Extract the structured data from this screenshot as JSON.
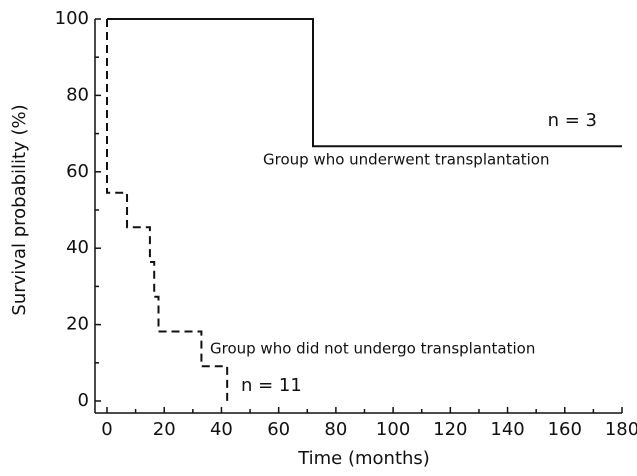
{
  "chart_data": {
    "type": "step",
    "xlabel": "Time (months)",
    "ylabel": "Survival probability (%)",
    "xlim": [
      0,
      180
    ],
    "ylim": [
      0,
      100
    ],
    "xticks": [
      0,
      20,
      40,
      60,
      80,
      100,
      120,
      140,
      160,
      180
    ],
    "yticks": [
      0,
      20,
      40,
      60,
      80,
      100
    ],
    "x_minor_ticks": [
      10,
      30,
      50,
      70,
      90,
      110,
      130,
      150,
      170
    ],
    "y_minor_ticks": [
      10,
      30,
      50,
      70,
      90
    ],
    "series": [
      {
        "name": "Group who underwent transplantation",
        "label": "n = 3",
        "color": "#111111",
        "dashed": false,
        "x": [
          0,
          72,
          180
        ],
        "values": [
          100,
          66.7,
          66.7
        ]
      },
      {
        "name": "Group who did not undergo transplantation",
        "label": "n = 11",
        "color": "#111111",
        "dashed": true,
        "x": [
          0,
          0,
          7,
          15,
          16.5,
          18,
          33,
          42
        ],
        "values": [
          100,
          54.5,
          45.5,
          36.4,
          27.3,
          18.2,
          9.1,
          0
        ]
      }
    ]
  }
}
